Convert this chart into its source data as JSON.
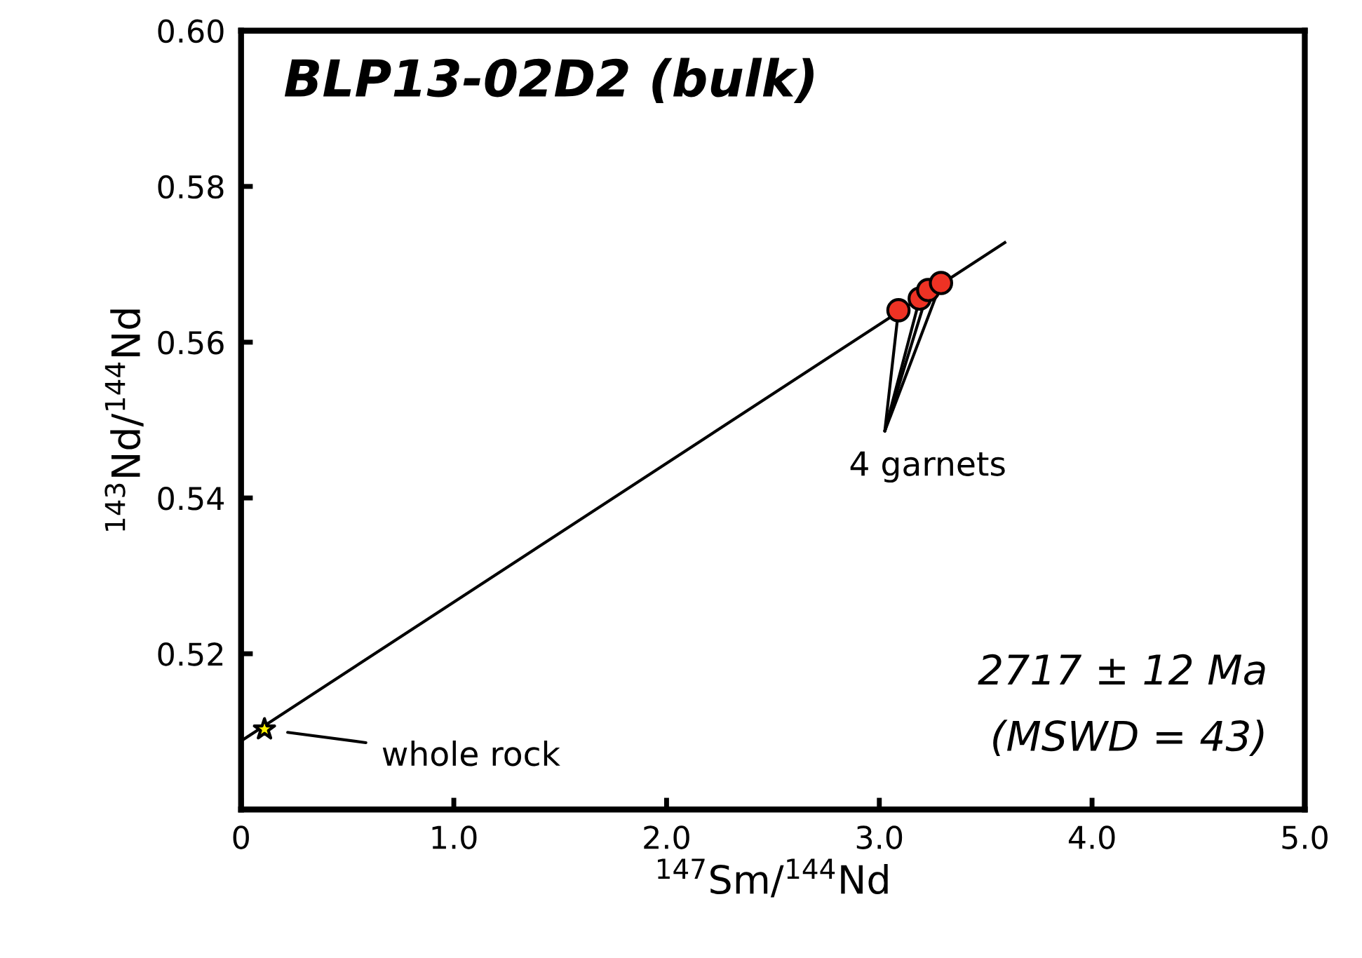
{
  "chart_data": {
    "type": "scatter",
    "title": "BLP13-02D2 (bulk)",
    "xlabel": "$^{147}$Sm/$^{144}$Nd",
    "ylabel": "$^{143}$Nd/$^{144}$Nd",
    "xlim": [
      0,
      5.0
    ],
    "ylim": [
      0.5,
      0.6
    ],
    "xticks": [
      0,
      {
        "value": 1,
        "label": "1.0"
      },
      {
        "value": 2,
        "label": "2.0"
      },
      {
        "value": 3,
        "label": "3.0"
      },
      {
        "value": 4,
        "label": "4.0"
      },
      {
        "value": 5,
        "label": "5.0"
      }
    ],
    "yticks": [
      0.52,
      0.54,
      0.56,
      0.58,
      {
        "value": 0.6,
        "label": "0.60"
      }
    ],
    "grid": false,
    "series": [
      {
        "type": "line",
        "color": "#000000",
        "x": [
          0,
          3.59
        ],
        "values": [
          0.5088,
          0.5728
        ],
        "marker": "none"
      },
      {
        "color": "#ee3224",
        "x": [
          3.09,
          3.19,
          3.23,
          3.29
        ],
        "values": [
          0.5641,
          0.5656,
          0.5667,
          0.5676
        ],
        "marker": "circle"
      },
      {
        "color": "#fff200",
        "x": [
          0.11
        ],
        "values": [
          0.5103
        ],
        "marker": "star"
      }
    ],
    "annotations": [
      "whole rock",
      {
        "text": "4 garnets",
        "x": 3.09,
        "y": 0.5641
      },
      "2717 ± 12 Ma",
      "(MSWD = 43)"
    ]
  }
}
